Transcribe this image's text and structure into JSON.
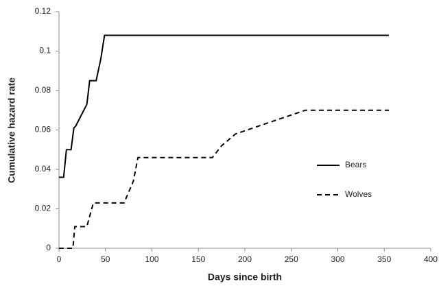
{
  "chart_data": {
    "type": "line",
    "xlabel": "Days since birth",
    "ylabel": "Cumulative hazard rate",
    "xlim": [
      0,
      400
    ],
    "xticks": [
      0,
      50,
      100,
      150,
      200,
      250,
      300,
      350,
      400
    ],
    "ylim": [
      0,
      0.12
    ],
    "yticks": [
      0,
      0.02,
      0.04,
      0.06,
      0.08,
      0.1,
      0.12
    ],
    "grid": false,
    "legend": "right",
    "series": [
      {
        "name": "Bears",
        "color": "#000000",
        "dash": "solid",
        "x": [
          0,
          5,
          8,
          13,
          16,
          18,
          30,
          33,
          40,
          45,
          49,
          355
        ],
        "values": [
          0.036,
          0.036,
          0.05,
          0.05,
          0.061,
          0.062,
          0.073,
          0.085,
          0.085,
          0.096,
          0.108,
          0.108
        ]
      },
      {
        "name": "Wolves",
        "color": "#000000",
        "dash": "dashed",
        "x": [
          0,
          15,
          17,
          30,
          37,
          70,
          80,
          85,
          165,
          175,
          190,
          265,
          355
        ],
        "values": [
          0,
          0,
          0.011,
          0.011,
          0.023,
          0.023,
          0.034,
          0.046,
          0.046,
          0.052,
          0.058,
          0.07,
          0.07
        ]
      }
    ]
  }
}
